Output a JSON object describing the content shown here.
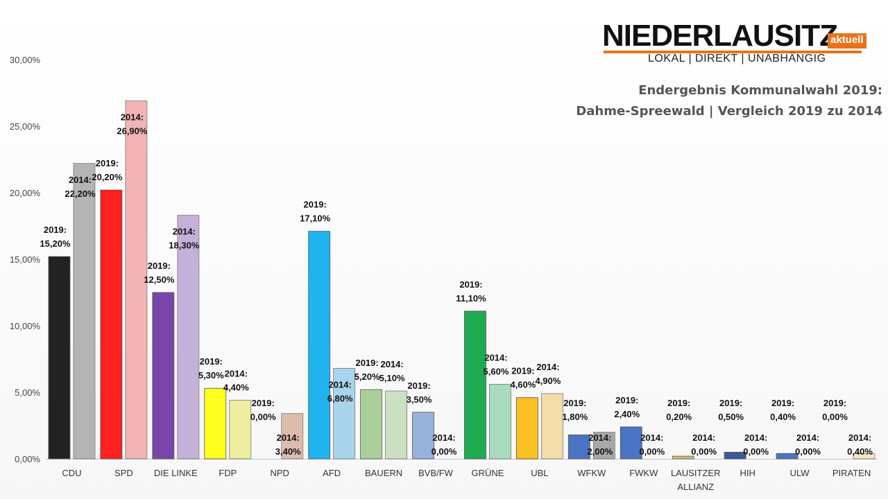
{
  "logo": {
    "main": "NIEDERLAUSITZ",
    "badge": "aktuell",
    "tagline": "LOKAL | DIREKT | UNABHÄNGIG"
  },
  "title": {
    "line1": "Endergebnis Kommunalwahl 2019:",
    "line2": "Dahme-Spreewald | Vergleich 2019 zu 2014"
  },
  "chart_data": {
    "type": "bar",
    "title": "Endergebnis Kommunalwahl 2019: Dahme-Spreewald | Vergleich 2019 zu 2014",
    "categories": [
      "CDU",
      "SPD",
      "DIE LINKE",
      "FDP",
      "NPD",
      "AFD",
      "BAUERN",
      "BVB/FW",
      "GRÜNE",
      "UBL",
      "WFKW",
      "FWKW",
      "LAUSITZER ALLIANZ",
      "HIH",
      "ULW",
      "PIRATEN"
    ],
    "series": [
      {
        "name": "2019",
        "values": [
          15.2,
          20.2,
          12.5,
          5.3,
          0.0,
          17.1,
          5.2,
          3.5,
          11.1,
          4.6,
          1.8,
          2.4,
          0.2,
          0.5,
          0.4,
          0.0
        ]
      },
      {
        "name": "2014",
        "values": [
          22.2,
          26.9,
          18.3,
          4.4,
          3.4,
          6.8,
          5.1,
          0.0,
          5.6,
          4.9,
          2.0,
          0.0,
          0.0,
          0.0,
          0.0,
          0.4
        ]
      }
    ],
    "labels_2019": [
      "15,20%",
      "20,20%",
      "12,50%",
      "5,30%",
      "0,00%",
      "17,10%",
      "5,20%",
      "3,50%",
      "11,10%",
      "4,60%",
      "1,80%",
      "2,40%",
      "0,20%",
      "0,50%",
      "0,40%",
      "0,00%"
    ],
    "labels_2014": [
      "22,20%",
      "26,90%",
      "18,30%",
      "4,40%",
      "3,40%",
      "6,80%",
      "5,10%",
      "0,00%",
      "5,60%",
      "4,90%",
      "2,00%",
      "0,00%",
      "0,00%",
      "0,00%",
      "0,00%",
      "0,40%"
    ],
    "yticks": [
      "0,00%",
      "5,00%",
      "10,00%",
      "15,00%",
      "20,00%",
      "25,00%",
      "30,00%"
    ],
    "ylim": [
      0,
      30
    ],
    "grid": false,
    "legend": "none",
    "colors_2019": [
      "#222222",
      "#ff2020",
      "#7a45a8",
      "#ffff20",
      "#bbbbbb",
      "#1fb4ef",
      "#aad09a",
      "#98b2de",
      "#1eaa50",
      "#f8c020",
      "#4a74c4",
      "#4a74c4",
      "#d8c070",
      "#3a5aa0",
      "#4a74c4",
      "#e8dcb0"
    ],
    "colors_2014": [
      "#b4b4b4",
      "#f2b4b4",
      "#c4b0d8",
      "#eeeea0",
      "#dcbcac",
      "#a8d4ec",
      "#cce0c4",
      "#c0cce8",
      "#a8dcbc",
      "#f4dcaa",
      "#a8a8a8",
      "#c8d0e8",
      "#e8e0c0",
      "#c0c8e0",
      "#c8d0e8",
      "#f0e8c8"
    ]
  }
}
